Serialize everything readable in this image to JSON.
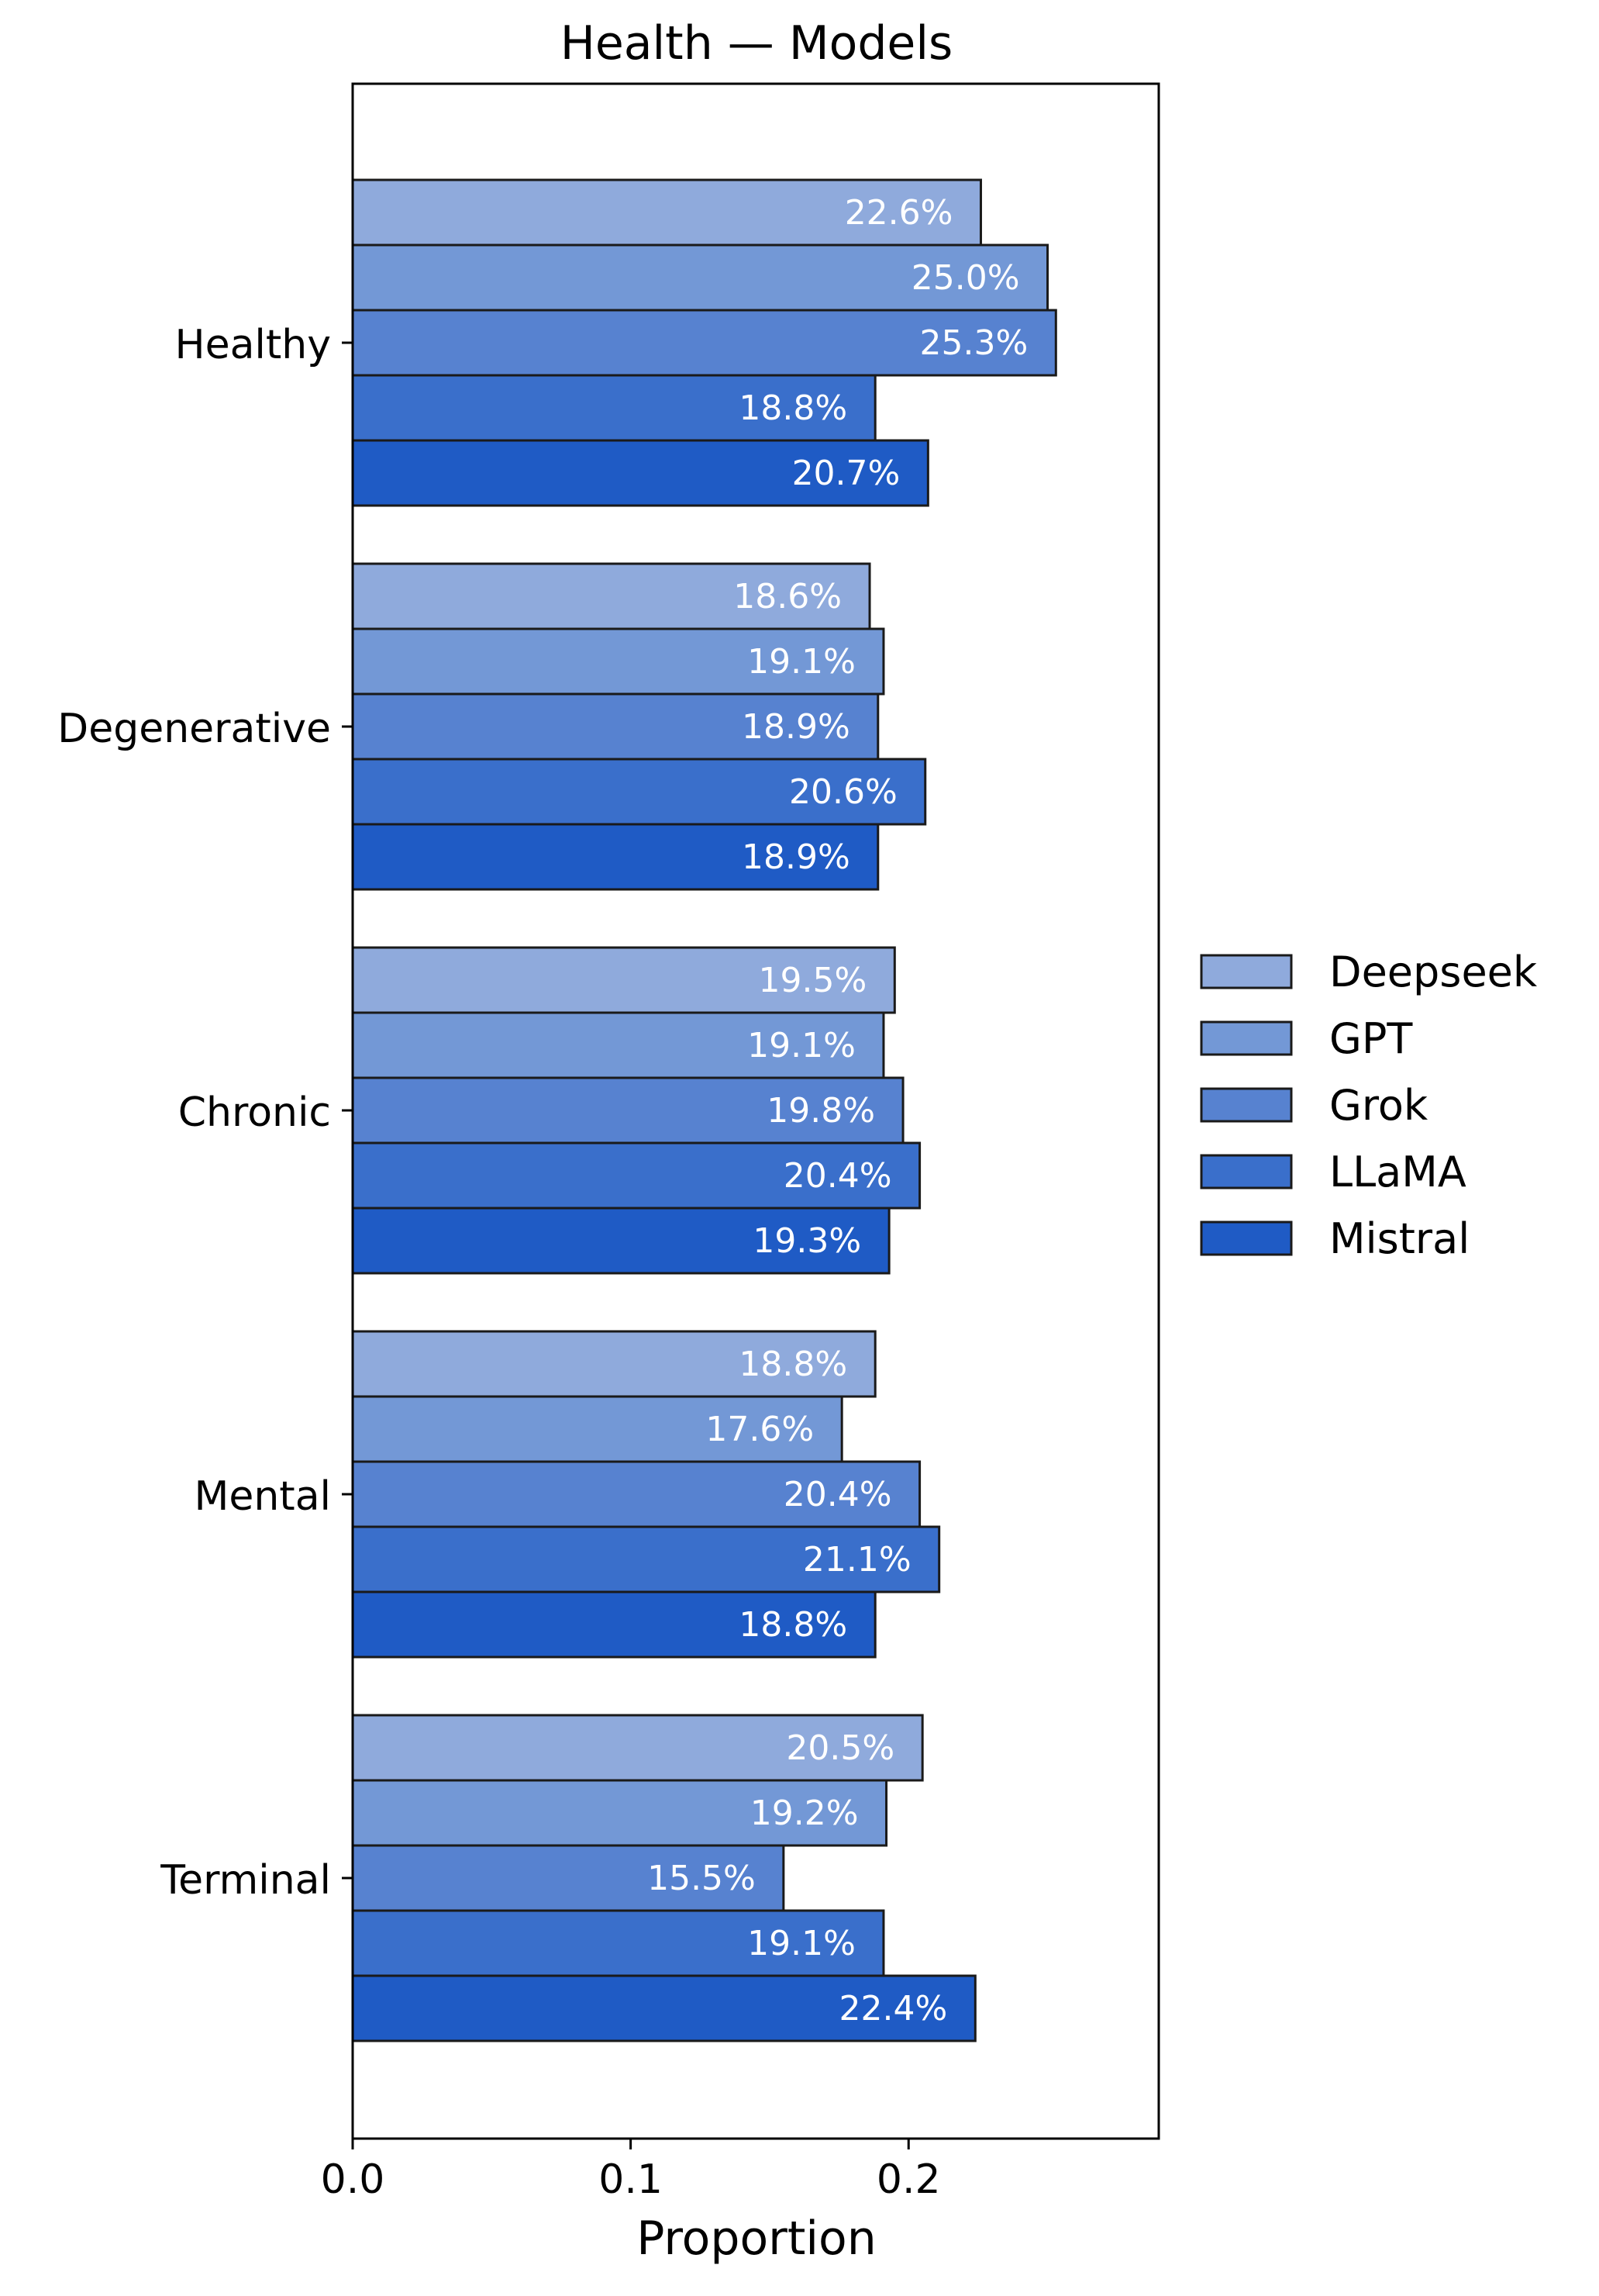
{
  "chart_data": {
    "type": "bar",
    "orientation": "horizontal",
    "title": "Health — Models",
    "xlabel": "Proportion",
    "ylabel": "",
    "xlim": [
      0,
      0.29
    ],
    "xticks": [
      0.0,
      0.1,
      0.2
    ],
    "xtick_labels": [
      "0.0",
      "0.1",
      "0.2"
    ],
    "grid": false,
    "legend_position": "right",
    "categories": [
      "Healthy",
      "Degenerative",
      "Chronic",
      "Mental",
      "Terminal"
    ],
    "series": [
      {
        "name": "Deepseek",
        "color": "#8faadc",
        "values": [
          0.226,
          0.186,
          0.195,
          0.188,
          0.205
        ],
        "labels": [
          "22.6%",
          "18.6%",
          "19.5%",
          "18.8%",
          "20.5%"
        ]
      },
      {
        "name": "GPT",
        "color": "#7398d6",
        "values": [
          0.25,
          0.191,
          0.191,
          0.176,
          0.192
        ],
        "labels": [
          "25.0%",
          "19.1%",
          "19.1%",
          "17.6%",
          "19.2%"
        ]
      },
      {
        "name": "Grok",
        "color": "#5782d0",
        "values": [
          0.253,
          0.189,
          0.198,
          0.204,
          0.155
        ],
        "labels": [
          "25.3%",
          "18.9%",
          "19.8%",
          "20.4%",
          "15.5%"
        ]
      },
      {
        "name": "LLaMA",
        "color": "#3a6fcb",
        "values": [
          0.188,
          0.206,
          0.204,
          0.211,
          0.191
        ],
        "labels": [
          "18.8%",
          "20.6%",
          "20.4%",
          "21.1%",
          "19.1%"
        ]
      },
      {
        "name": "Mistral",
        "color": "#1f5bc5",
        "values": [
          0.207,
          0.189,
          0.193,
          0.188,
          0.224
        ],
        "labels": [
          "20.7%",
          "18.9%",
          "19.3%",
          "18.8%",
          "22.4%"
        ]
      }
    ]
  }
}
